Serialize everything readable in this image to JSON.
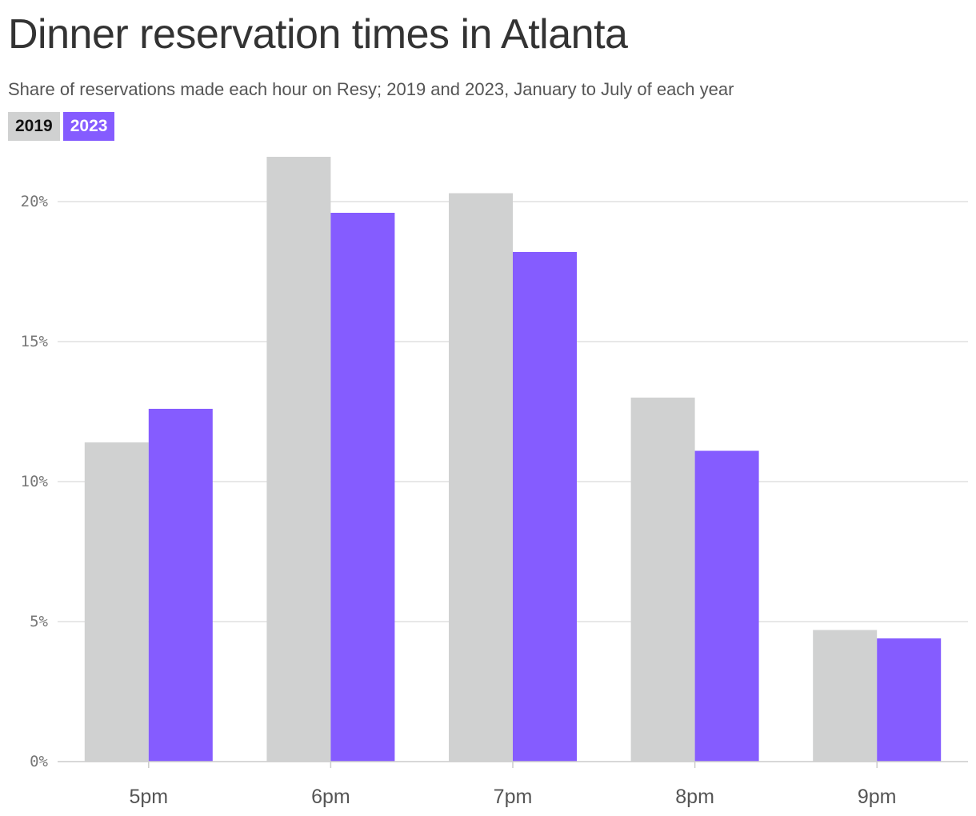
{
  "title": "Dinner reservation times in Atlanta",
  "subtitle": "Share of reservations made each hour on Resy; 2019 and 2023, January to July of each year",
  "legend": [
    "2019",
    "2023"
  ],
  "colors": {
    "series_2019": "#d0d1d1",
    "series_2023": "#855cff",
    "grid": "#e0e0e0",
    "axis": "#cccccc"
  },
  "chart_data": {
    "type": "bar",
    "title": "Dinner reservation times in Atlanta",
    "subtitle": "Share of reservations made each hour on Resy; 2019 and 2023, January to July of each year",
    "xlabel": "",
    "ylabel": "",
    "categories": [
      "5pm",
      "6pm",
      "7pm",
      "8pm",
      "9pm"
    ],
    "series": [
      {
        "name": "2019",
        "values": [
          11.4,
          21.6,
          20.3,
          13.0,
          4.7
        ]
      },
      {
        "name": "2023",
        "values": [
          12.6,
          19.6,
          18.2,
          11.1,
          4.4
        ]
      }
    ],
    "ylim": [
      0,
      22
    ],
    "yticks": [
      0,
      5,
      10,
      15,
      20
    ],
    "ytick_labels": [
      "0%",
      "5%",
      "10%",
      "15%",
      "20%"
    ],
    "grid": true,
    "legend_position": "top-left"
  }
}
